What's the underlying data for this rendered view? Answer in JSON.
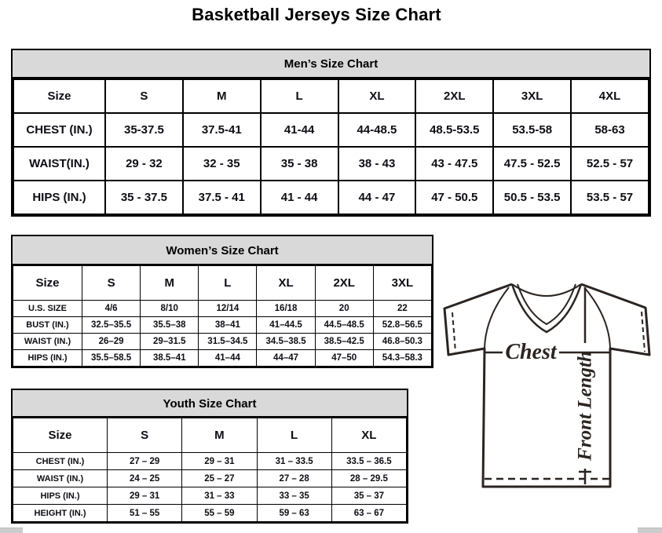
{
  "page": {
    "title": "Basketball Jerseys Size Chart"
  },
  "tables": {
    "men": {
      "caption": "Men’s Size Chart",
      "columns": [
        "Size",
        "S",
        "M",
        "L",
        "XL",
        "2XL",
        "3XL",
        "4XL"
      ],
      "rows": [
        {
          "label": "CHEST (IN.)",
          "values": [
            "35-37.5",
            "37.5-41",
            "41-44",
            "44-48.5",
            "48.5-53.5",
            "53.5-58",
            "58-63"
          ]
        },
        {
          "label": "WAIST(IN.)",
          "values": [
            "29 - 32",
            "32 - 35",
            "35 - 38",
            "38 - 43",
            "43 - 47.5",
            "47.5 - 52.5",
            "52.5 - 57"
          ]
        },
        {
          "label": "HIPS (IN.)",
          "values": [
            "35 - 37.5",
            "37.5 - 41",
            "41 - 44",
            "44 - 47",
            "47 - 50.5",
            "50.5 - 53.5",
            "53.5 - 57"
          ]
        }
      ]
    },
    "women": {
      "caption": "Women’s Size Chart",
      "columns": [
        "Size",
        "S",
        "M",
        "L",
        "XL",
        "2XL",
        "3XL"
      ],
      "rows": [
        {
          "label": "U.S. SIZE",
          "values": [
            "4/6",
            "8/10",
            "12/14",
            "16/18",
            "20",
            "22"
          ]
        },
        {
          "label": "BUST (IN.)",
          "values": [
            "32.5–35.5",
            "35.5–38",
            "38–41",
            "41–44.5",
            "44.5–48.5",
            "52.8–56.5"
          ]
        },
        {
          "label": "WAIST (IN.)",
          "values": [
            "26–29",
            "29–31.5",
            "31.5–34.5",
            "34.5–38.5",
            "38.5–42.5",
            "46.8–50.3"
          ]
        },
        {
          "label": "HIPS (IN.)",
          "values": [
            "35.5–58.5",
            "38.5–41",
            "41–44",
            "44–47",
            "47–50",
            "54.3–58.3"
          ]
        }
      ]
    },
    "youth": {
      "caption": "Youth Size Chart",
      "columns": [
        "Size",
        "S",
        "M",
        "L",
        "XL"
      ],
      "rows": [
        {
          "label": "CHEST (IN.)",
          "values": [
            "27 – 29",
            "29 – 31",
            "31 – 33.5",
            "33.5 – 36.5"
          ]
        },
        {
          "label": "WAIST (IN.)",
          "values": [
            "24 – 25",
            "25 – 27",
            "27 – 28",
            "28 – 29.5"
          ]
        },
        {
          "label": "HIPS (IN.)",
          "values": [
            "29 – 31",
            "31 – 33",
            "33 – 35",
            "35 – 37"
          ]
        },
        {
          "label": "HEIGHT (IN.)",
          "values": [
            "51 – 55",
            "55 – 59",
            "59 – 63",
            "63 – 67"
          ]
        }
      ]
    }
  },
  "diagram": {
    "chest_label": "Chest",
    "front_length_label": "Front Length"
  },
  "colors": {
    "caption_background": "#d9d9d9",
    "table_border": "#000000",
    "jersey_line": "#2b2421",
    "scrollbar": "#cccccc"
  }
}
